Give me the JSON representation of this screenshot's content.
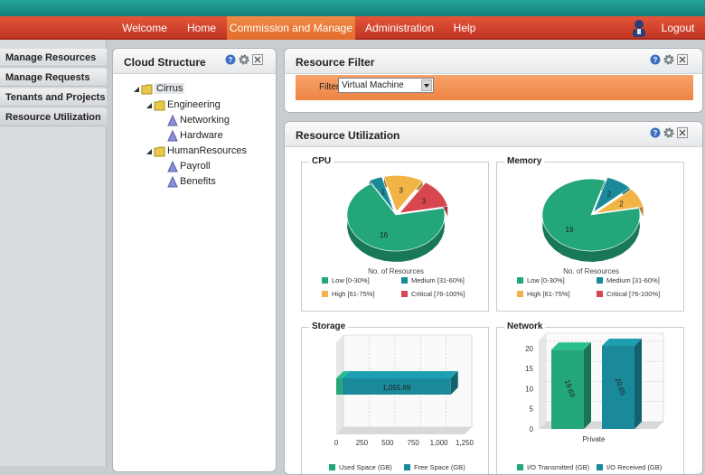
{
  "nav": {
    "items": [
      "Welcome",
      "Home",
      "Commission and Manage",
      "Administration",
      "Help"
    ],
    "active": "Commission and Manage",
    "logout": "Logout"
  },
  "sidebar": {
    "items": [
      {
        "label": "Manage Resources"
      },
      {
        "label": "Manage Requests"
      },
      {
        "label": "Tenants and Projects"
      },
      {
        "label": "Resource Utilization"
      }
    ],
    "active": "Resource Utilization"
  },
  "cloud_structure": {
    "title": "Cloud Structure",
    "tree": {
      "root": "Cirrus",
      "groups": [
        {
          "label": "Engineering",
          "children": [
            "Networking",
            "Hardware"
          ]
        },
        {
          "label": "HumanResources",
          "children": [
            "Payroll",
            "Benefits"
          ]
        }
      ]
    }
  },
  "resource_filter": {
    "title": "Resource Filter",
    "filter_label": "Filter",
    "filter_value": "Virtual Machine"
  },
  "resource_utilization": {
    "title": "Resource Utilization"
  },
  "colors": {
    "low": "#22a67a",
    "medium": "#1a8a9a",
    "high": "#f2b347",
    "critical": "#d8464f",
    "nav_red": "#d94730",
    "nav_active": "#ea7a38",
    "topbar": "#1f9b92"
  },
  "chart_data": [
    {
      "title": "CPU",
      "type": "pie",
      "xlabel": "No. of Resources",
      "labels": [
        "Low [0-30%]",
        "Medium [31-60%]",
        "High [61-75%]",
        "Critical [76-100%]"
      ],
      "values": [
        16,
        1,
        3,
        3
      ]
    },
    {
      "title": "Memory",
      "type": "pie",
      "xlabel": "No. of Resources",
      "labels": [
        "Low [0-30%]",
        "Medium [31-60%]",
        "High [61-75%]",
        "Critical [76-100%]"
      ],
      "values": [
        19,
        2,
        2,
        0
      ]
    },
    {
      "title": "Storage",
      "type": "bar",
      "orientation": "horizontal",
      "stacked": true,
      "series": [
        {
          "name": "Used Space (GB)",
          "values": [
            60
          ]
        },
        {
          "name": "Free Space (GB)",
          "values": [
            1055.69
          ]
        }
      ],
      "data_labels": [
        "",
        "1,055.69"
      ],
      "ticks": [
        "0",
        "250",
        "500",
        "750",
        "1,000",
        "1,250"
      ],
      "xlim": [
        0,
        1250
      ]
    },
    {
      "title": "Network",
      "type": "bar",
      "categories": [
        "Private"
      ],
      "series": [
        {
          "name": "I/O Transmitted (GB)",
          "values": [
            19.69
          ]
        },
        {
          "name": "I/O Received (GB)",
          "values": [
            20.65
          ]
        }
      ],
      "data_labels": [
        "19.69",
        "20.65"
      ],
      "ticks": [
        "0",
        "5",
        "10",
        "15",
        "20"
      ],
      "ylim": [
        0,
        22
      ]
    }
  ]
}
